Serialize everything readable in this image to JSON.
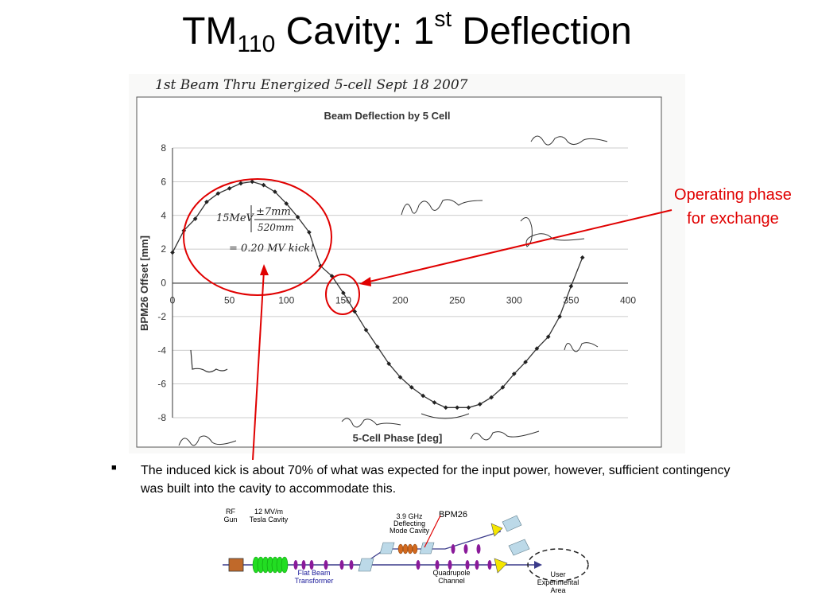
{
  "slide": {
    "title_main": "TM",
    "title_sub": "110",
    "title_mid": " Cavity: 1",
    "title_sup": "st",
    "title_end": " Deflection",
    "callout_line1": "Operating phase",
    "callout_line2": "for exchange",
    "bullet": "The induced kick is about 70% of what was expected for the input power, however, sufficient contingency was built into the cavity to accommodate this."
  },
  "scan_annotations": {
    "header_note": "1st Beam Thru Energized 5-cell   Sept 18 2007",
    "kick_note_line1": "15MeV",
    "kick_note_line2": "±7mm",
    "kick_note_line3": "520mm",
    "kick_note_line4": "= 0.20 MV kick!"
  },
  "chart_data": {
    "type": "line",
    "title": "Beam Deflection by 5 Cell",
    "xlabel": "5-Cell Phase [deg]",
    "ylabel": "BPM26 Offset [mm]",
    "xlim": [
      0,
      400
    ],
    "ylim": [
      -8,
      8
    ],
    "xticks": [
      "0",
      "50",
      "100",
      "150",
      "200",
      "250",
      "300",
      "350",
      "400"
    ],
    "yticks": [
      "8",
      "6",
      "4",
      "2",
      "0",
      "-2",
      "-4",
      "-6",
      "-8"
    ],
    "grid": true,
    "series": [
      {
        "name": "",
        "color": "#333333",
        "x": [
          0,
          10,
          20,
          30,
          40,
          50,
          60,
          70,
          80,
          90,
          100,
          110,
          120,
          130,
          140,
          150,
          160,
          170,
          180,
          190,
          200,
          210,
          220,
          230,
          240,
          250,
          260,
          270,
          280,
          290,
          300,
          310,
          320,
          330,
          340,
          350,
          360
        ],
        "y": [
          1.8,
          3.1,
          3.8,
          4.8,
          5.3,
          5.6,
          5.9,
          6.0,
          5.8,
          5.4,
          4.7,
          3.9,
          3.0,
          1.0,
          0.4,
          -0.6,
          -1.7,
          -2.8,
          -3.8,
          -4.8,
          -5.6,
          -6.2,
          -6.7,
          -7.1,
          -7.4,
          -7.4,
          -7.4,
          -7.2,
          -6.8,
          -6.2,
          -5.4,
          -4.7,
          -3.9,
          -3.2,
          -2.0,
          -0.2,
          1.5
        ]
      }
    ]
  },
  "beamline": {
    "bpm_label": "BPM26",
    "rf_gun": [
      "RF",
      "Gun"
    ],
    "tesla": [
      "12 MV/m",
      "Tesla Cavity"
    ],
    "deflecting": [
      "3.9 GHz",
      "Deflecting",
      "Mode Cavity"
    ],
    "flat_beam": [
      "Flat Beam",
      "Transformer"
    ],
    "quad": [
      "Quadrupole",
      "Channel"
    ],
    "user": [
      "User",
      "Experimental",
      "Area"
    ],
    "colors": {
      "gun": "#c0692a",
      "tesla": "#22dd22",
      "purple": "#8a1a9a",
      "yellow": "#f5e600",
      "dipole": "#bcd9e8",
      "beam": "#3a3a8a",
      "label_blue": "#1a1a9a"
    }
  }
}
